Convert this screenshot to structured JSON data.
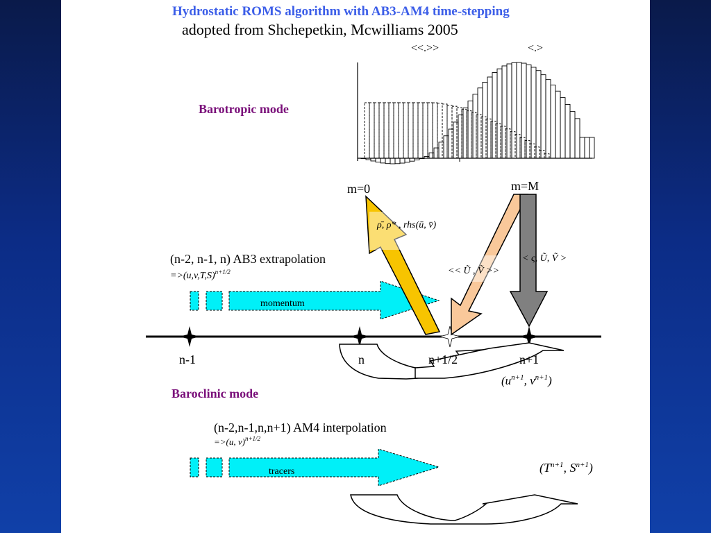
{
  "title": "Hydrostatic ROMS algorithm with AB3-AM4 time-stepping",
  "subtitle": "adopted from Shchepetkin, Mcwilliams 2005",
  "colors": {
    "title": "#3c5ee8",
    "mode_label": "#7a107a",
    "momentum": "#00f0f8",
    "yellow": "#f7c400",
    "peach": "#f9c89a",
    "gray": "#808080"
  },
  "barotropic": {
    "label": "Barotropic mode",
    "double_average_label": "<<.>>",
    "average_label": "<.>"
  },
  "timeline": {
    "ticks": [
      "n-1",
      "n",
      "n+1/2",
      "n+1"
    ],
    "m0": "m=0",
    "mM": "m=M",
    "rho_label": "ρ̄, ρ* , rhs(ū, v̄)",
    "UV_double": "<< Ũ , Ṽ >>",
    "zeta_UV": "< ς, Ũ, Ṽ >",
    "uv_next": {
      "base": "(u",
      "sup1": "n+1",
      "mid": ", v",
      "sup2": "n+1",
      "end": ")"
    }
  },
  "baroclinic_label": "Baroclinic mode",
  "ab3": {
    "text": "(n-2, n-1, n) AB3 extrapolation",
    "formula": "=>(u,v,T,S)",
    "sup": "n+1/2",
    "arrow_label": "momentum"
  },
  "am4": {
    "text": "(n-2,n-1,n,n+1) AM4 interpolation",
    "formula": "=>(u, v)",
    "sup": "n+1/2",
    "arrow_label": "tracers"
  },
  "ts_next": {
    "base": "(T",
    "sup1": "n+1",
    "mid": ", S",
    "sup2": "n+1",
    "end": ")"
  }
}
